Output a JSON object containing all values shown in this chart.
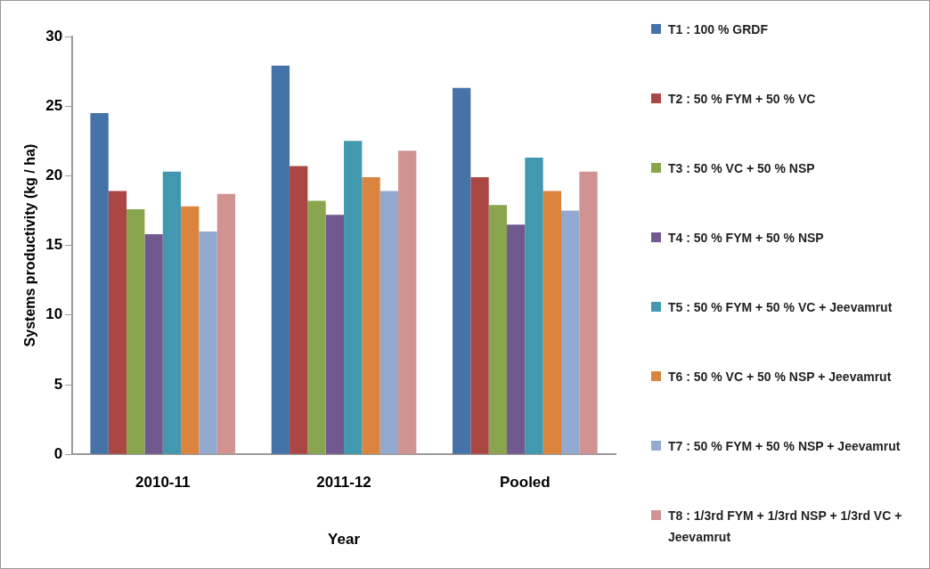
{
  "chart_data": {
    "type": "bar",
    "categories": [
      "2010-11",
      "2011-12",
      "Pooled"
    ],
    "xlabel": "Year",
    "ylabel": "Systems productivity (kg / ha)",
    "ylim": [
      0,
      30
    ],
    "yticks": [
      0,
      5,
      10,
      15,
      20,
      25,
      30
    ],
    "grid": false,
    "legend": "right",
    "series": [
      {
        "name": "T1 : 100 % GRDF",
        "color": "#4572a7",
        "values": [
          24.5,
          27.9,
          26.3
        ]
      },
      {
        "name": "T2 : 50 % FYM + 50 % VC",
        "color": "#aa4643",
        "values": [
          18.9,
          20.7,
          19.9
        ]
      },
      {
        "name": "T3 : 50 % VC + 50 % NSP",
        "color": "#89a54e",
        "values": [
          17.6,
          18.2,
          17.9
        ]
      },
      {
        "name": "T4 : 50 % FYM + 50 % NSP",
        "color": "#71588f",
        "values": [
          15.8,
          17.2,
          16.5
        ]
      },
      {
        "name": "T5 : 50 % FYM + 50 % VC + Jeevamrut",
        "color": "#4198af",
        "values": [
          20.3,
          22.5,
          21.3
        ]
      },
      {
        "name": "T6 : 50 % VC + 50 % NSP + Jeevamrut",
        "color": "#db843d",
        "values": [
          17.8,
          19.9,
          18.9
        ]
      },
      {
        "name": "T7 : 50 % FYM + 50 % NSP + Jeevamrut",
        "color": "#93a9cf",
        "values": [
          16.0,
          18.9,
          17.5
        ]
      },
      {
        "name": "T8 : 1/3rd FYM + 1/3rd NSP + 1/3rd VC + Jeevamrut",
        "color": "#d19392",
        "values": [
          18.7,
          21.8,
          20.3
        ]
      }
    ]
  }
}
